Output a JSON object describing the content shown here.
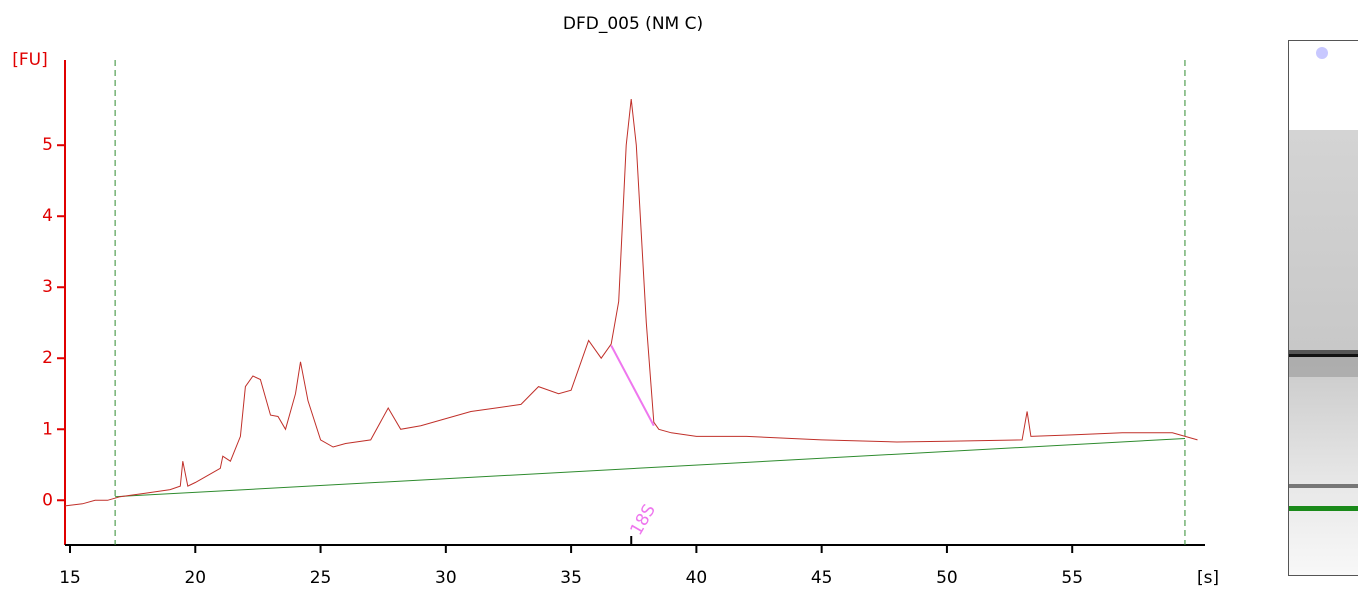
{
  "chart_data": {
    "type": "line",
    "title": "DFD_005 (NM C)",
    "xlabel": "[s]",
    "ylabel": "[FU]",
    "xlim": [
      14.8,
      60.3
    ],
    "ylim": [
      -0.63,
      6.2
    ],
    "xticks": [
      15,
      20,
      25,
      30,
      35,
      40,
      45,
      50,
      55
    ],
    "yticks": [
      0,
      1,
      2,
      3,
      4,
      5
    ],
    "series": [
      {
        "color": "#c0302a",
        "x": [
          14.8,
          15.5,
          16.0,
          16.5,
          17.0,
          18.0,
          19.0,
          19.4,
          19.5,
          19.7,
          20.0,
          20.5,
          21.0,
          21.1,
          21.4,
          21.8,
          22.0,
          22.3,
          22.6,
          23.0,
          23.3,
          23.6,
          24.0,
          24.2,
          24.5,
          25.0,
          25.5,
          26.0,
          27.0,
          27.7,
          28.2,
          29.0,
          30.0,
          31.0,
          32.0,
          33.0,
          33.7,
          34.5,
          35.0,
          35.7,
          36.2,
          36.6,
          36.9,
          37.2,
          37.4,
          37.6,
          38.0,
          38.3,
          38.5,
          39.0,
          40.0,
          42.0,
          45.0,
          48.0,
          50.0,
          53.0,
          53.2,
          53.35,
          55.0,
          57.0,
          59.0,
          60.0
        ],
        "y": [
          -0.08,
          -0.05,
          0.0,
          0.0,
          0.05,
          0.1,
          0.15,
          0.2,
          0.55,
          0.2,
          0.25,
          0.35,
          0.45,
          0.62,
          0.55,
          0.9,
          1.6,
          1.75,
          1.7,
          1.2,
          1.18,
          1.0,
          1.5,
          1.95,
          1.4,
          0.85,
          0.75,
          0.8,
          0.85,
          1.3,
          1.0,
          1.05,
          1.15,
          1.25,
          1.3,
          1.35,
          1.6,
          1.5,
          1.55,
          2.25,
          2.0,
          2.2,
          2.8,
          5.0,
          5.65,
          5.0,
          2.5,
          1.1,
          1.0,
          0.95,
          0.9,
          0.9,
          0.85,
          0.82,
          0.83,
          0.85,
          1.25,
          0.9,
          0.92,
          0.95,
          0.95,
          0.85
        ]
      }
    ],
    "baseline": {
      "color": "#2e8b2e",
      "x": [
        16.8,
        59.5
      ],
      "y": [
        0.05,
        0.87
      ]
    },
    "window_lines": [
      16.8,
      59.5
    ],
    "peak_line": {
      "color": "#ee77ee",
      "x": [
        36.6,
        38.3
      ],
      "y": [
        2.18,
        1.05
      ]
    },
    "marker": {
      "label": "18S",
      "x": 37.4
    }
  }
}
